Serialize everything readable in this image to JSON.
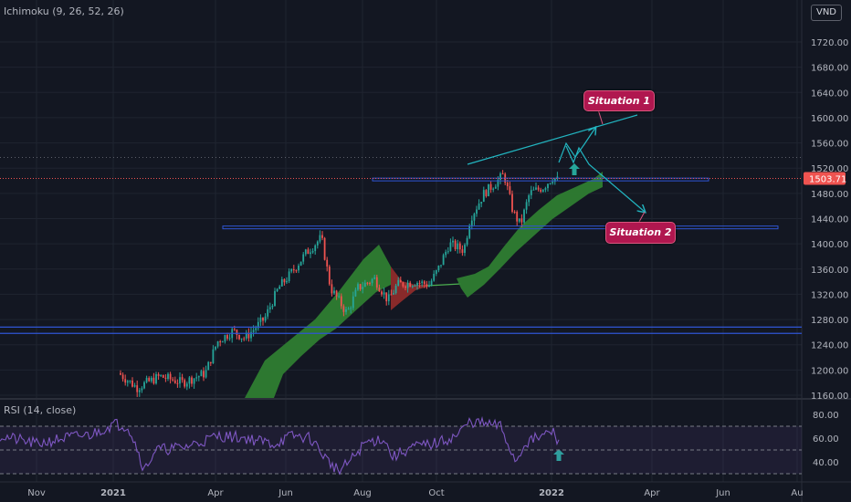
{
  "indicator_label": "Ichimoku (9, 26, 52, 26)",
  "rsi_label": "RSI (14, close)",
  "currency": "VND",
  "colors": {
    "background": "#131722",
    "grid": "#1f2430",
    "text": "#b2b5be",
    "up_candle": "#26a69a",
    "down_candle": "#ef5350",
    "cloud_bull": "#2e7d32",
    "cloud_bear": "#8e2b2b",
    "hline": "#2f55d4",
    "trendline": "#22b5c0",
    "rsi_line": "#7e57c2",
    "callout": "#b0174f",
    "arrow": "#26a69a",
    "price_tag": "#ef5350"
  },
  "chart_data": {
    "type": "candlestick",
    "main": {
      "y_ticks": [
        "1720.00",
        "1680.00",
        "1640.00",
        "1600.00",
        "1560.00",
        "1520.00",
        "1480.00",
        "1440.00",
        "1400.00",
        "1360.00",
        "1320.00",
        "1280.00",
        "1240.00",
        "1200.00",
        "1160.00"
      ],
      "ylim": [
        1155,
        1730
      ],
      "last_price": "1503.71",
      "horizontal_levels": [
        1502,
        1426,
        1268,
        1258
      ],
      "resistance_dotted": 1537,
      "candles_approx_close": [
        [
          "2020-12-01",
          1195
        ],
        [
          "2020-12-15",
          1185
        ],
        [
          "2021-01-01",
          1175
        ],
        [
          "2021-01-15",
          1190
        ],
        [
          "2021-02-01",
          1180
        ],
        [
          "2021-02-15",
          1195
        ],
        [
          "2021-03-01",
          1180
        ],
        [
          "2021-03-15",
          1195
        ],
        [
          "2021-04-01",
          1245
        ],
        [
          "2021-04-15",
          1260
        ],
        [
          "2021-05-01",
          1270
        ],
        [
          "2021-05-15",
          1310
        ],
        [
          "2021-06-01",
          1345
        ],
        [
          "2021-06-15",
          1375
        ],
        [
          "2021-07-01",
          1410
        ],
        [
          "2021-07-15",
          1300
        ],
        [
          "2021-08-01",
          1290
        ],
        [
          "2021-08-15",
          1330
        ],
        [
          "2021-09-01",
          1340
        ],
        [
          "2021-09-15",
          1335
        ],
        [
          "2021-10-01",
          1380
        ],
        [
          "2021-10-15",
          1395
        ],
        [
          "2021-11-01",
          1470
        ],
        [
          "2021-11-15",
          1495
        ],
        [
          "2021-12-01",
          1440
        ],
        [
          "2021-12-15",
          1480
        ],
        [
          "2022-01-01",
          1503
        ]
      ]
    },
    "rsi": {
      "y_ticks": [
        "80.00",
        "60.00",
        "40.00"
      ],
      "band": [
        70,
        30
      ]
    },
    "x_ticks": [
      "Nov",
      "2021",
      "Apr",
      "Jun",
      "Aug",
      "Oct",
      "2022",
      "Apr",
      "Jun",
      "Au"
    ],
    "annotations": [
      "Situation 1",
      "Situation 2"
    ]
  }
}
